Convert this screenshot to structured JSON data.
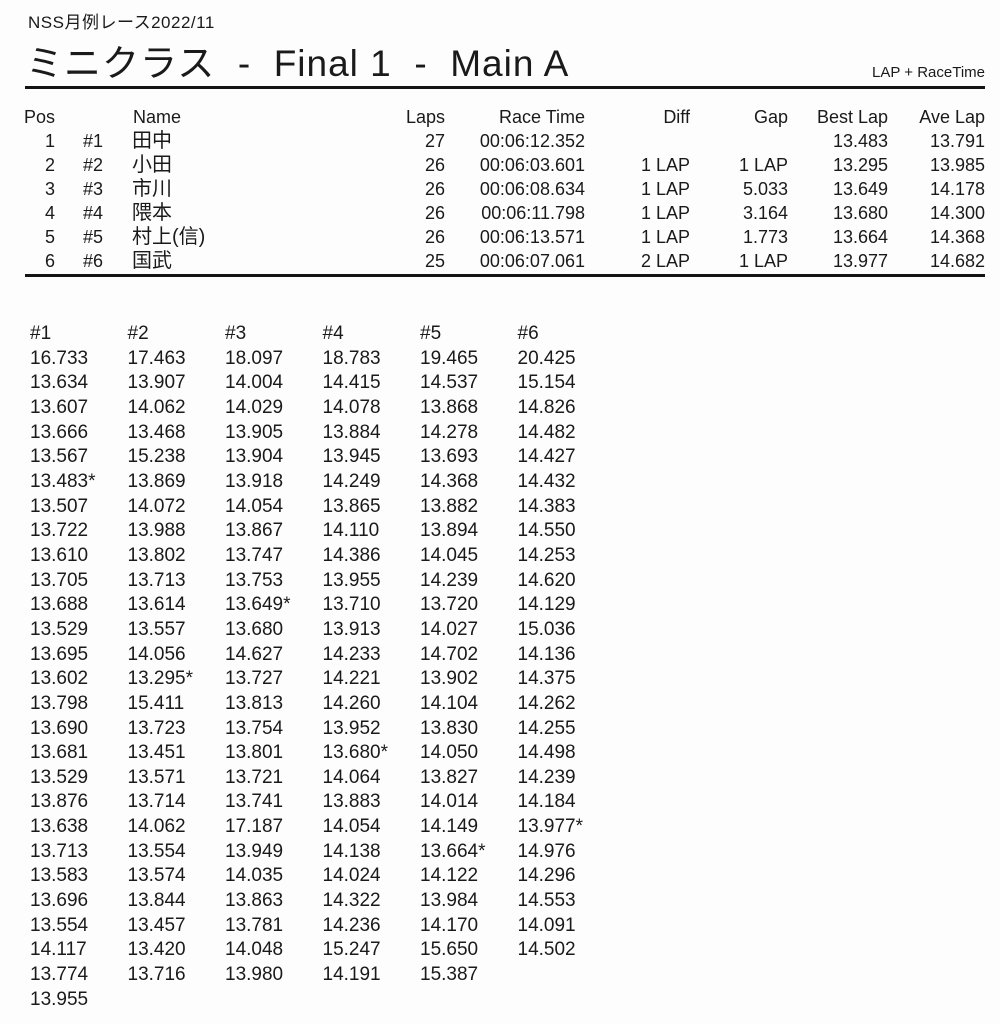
{
  "header": {
    "doc_title": "NSS月例レース2022/11",
    "race_title": "ミニクラス  -  Final 1  -  Main A",
    "timing_mode": "LAP + RaceTime"
  },
  "results": {
    "columns": [
      "Pos",
      "Name",
      "Laps",
      "Race Time",
      "Diff",
      "Gap",
      "Best Lap",
      "Ave Lap"
    ],
    "rows": [
      {
        "pos": "1",
        "car": "#1",
        "name": "田中",
        "laps": "27",
        "race_time": "00:06:12.352",
        "diff": "",
        "gap": "",
        "best_lap": "13.483",
        "ave_lap": "13.791"
      },
      {
        "pos": "2",
        "car": "#2",
        "name": "小田",
        "laps": "26",
        "race_time": "00:06:03.601",
        "diff": "1 LAP",
        "gap": "1 LAP",
        "best_lap": "13.295",
        "ave_lap": "13.985"
      },
      {
        "pos": "3",
        "car": "#3",
        "name": "市川",
        "laps": "26",
        "race_time": "00:06:08.634",
        "diff": "1 LAP",
        "gap": "5.033",
        "best_lap": "13.649",
        "ave_lap": "14.178"
      },
      {
        "pos": "4",
        "car": "#4",
        "name": "隈本",
        "laps": "26",
        "race_time": "00:06:11.798",
        "diff": "1 LAP",
        "gap": "3.164",
        "best_lap": "13.680",
        "ave_lap": "14.300"
      },
      {
        "pos": "5",
        "car": "#5",
        "name": "村上(信)",
        "laps": "26",
        "race_time": "00:06:13.571",
        "diff": "1 LAP",
        "gap": "1.773",
        "best_lap": "13.664",
        "ave_lap": "14.368"
      },
      {
        "pos": "6",
        "car": "#6",
        "name": "国武",
        "laps": "25",
        "race_time": "00:06:07.061",
        "diff": "2 LAP",
        "gap": "1 LAP",
        "best_lap": "13.977",
        "ave_lap": "14.682"
      }
    ]
  },
  "lap_times": {
    "columns": [
      "#1",
      "#2",
      "#3",
      "#4",
      "#5",
      "#6"
    ],
    "rows": [
      [
        "16.733",
        "17.463",
        "18.097",
        "18.783",
        "19.465",
        "20.425"
      ],
      [
        "13.634",
        "13.907",
        "14.004",
        "14.415",
        "14.537",
        "15.154"
      ],
      [
        "13.607",
        "14.062",
        "14.029",
        "14.078",
        "13.868",
        "14.826"
      ],
      [
        "13.666",
        "13.468",
        "13.905",
        "13.884",
        "14.278",
        "14.482"
      ],
      [
        "13.567",
        "15.238",
        "13.904",
        "13.945",
        "13.693",
        "14.427"
      ],
      [
        "13.483*",
        "13.869",
        "13.918",
        "14.249",
        "14.368",
        "14.432"
      ],
      [
        "13.507",
        "14.072",
        "14.054",
        "13.865",
        "13.882",
        "14.383"
      ],
      [
        "13.722",
        "13.988",
        "13.867",
        "14.110",
        "13.894",
        "14.550"
      ],
      [
        "13.610",
        "13.802",
        "13.747",
        "14.386",
        "14.045",
        "14.253"
      ],
      [
        "13.705",
        "13.713",
        "13.753",
        "13.955",
        "14.239",
        "14.620"
      ],
      [
        "13.688",
        "13.614",
        "13.649*",
        "13.710",
        "13.720",
        "14.129"
      ],
      [
        "13.529",
        "13.557",
        "13.680",
        "13.913",
        "14.027",
        "15.036"
      ],
      [
        "13.695",
        "14.056",
        "14.627",
        "14.233",
        "14.702",
        "14.136"
      ],
      [
        "13.602",
        "13.295*",
        "13.727",
        "14.221",
        "13.902",
        "14.375"
      ],
      [
        "13.798",
        "15.411",
        "13.813",
        "14.260",
        "14.104",
        "14.262"
      ],
      [
        "13.690",
        "13.723",
        "13.754",
        "13.952",
        "13.830",
        "14.255"
      ],
      [
        "13.681",
        "13.451",
        "13.801",
        "13.680*",
        "14.050",
        "14.498"
      ],
      [
        "13.529",
        "13.571",
        "13.721",
        "14.064",
        "13.827",
        "14.239"
      ],
      [
        "13.876",
        "13.714",
        "13.741",
        "13.883",
        "14.014",
        "14.184"
      ],
      [
        "13.638",
        "14.062",
        "17.187",
        "14.054",
        "14.149",
        "13.977*"
      ],
      [
        "13.713",
        "13.554",
        "13.949",
        "14.138",
        "13.664*",
        "14.976"
      ],
      [
        "13.583",
        "13.574",
        "14.035",
        "14.024",
        "14.122",
        "14.296"
      ],
      [
        "13.696",
        "13.844",
        "13.863",
        "14.322",
        "13.984",
        "14.553"
      ],
      [
        "13.554",
        "13.457",
        "13.781",
        "14.236",
        "14.170",
        "14.091"
      ],
      [
        "14.117",
        "13.420",
        "14.048",
        "15.247",
        "15.650",
        "14.502"
      ],
      [
        "13.774",
        "13.716",
        "13.980",
        "14.191",
        "15.387",
        ""
      ],
      [
        "13.955",
        "",
        "",
        "",
        "",
        ""
      ]
    ]
  }
}
